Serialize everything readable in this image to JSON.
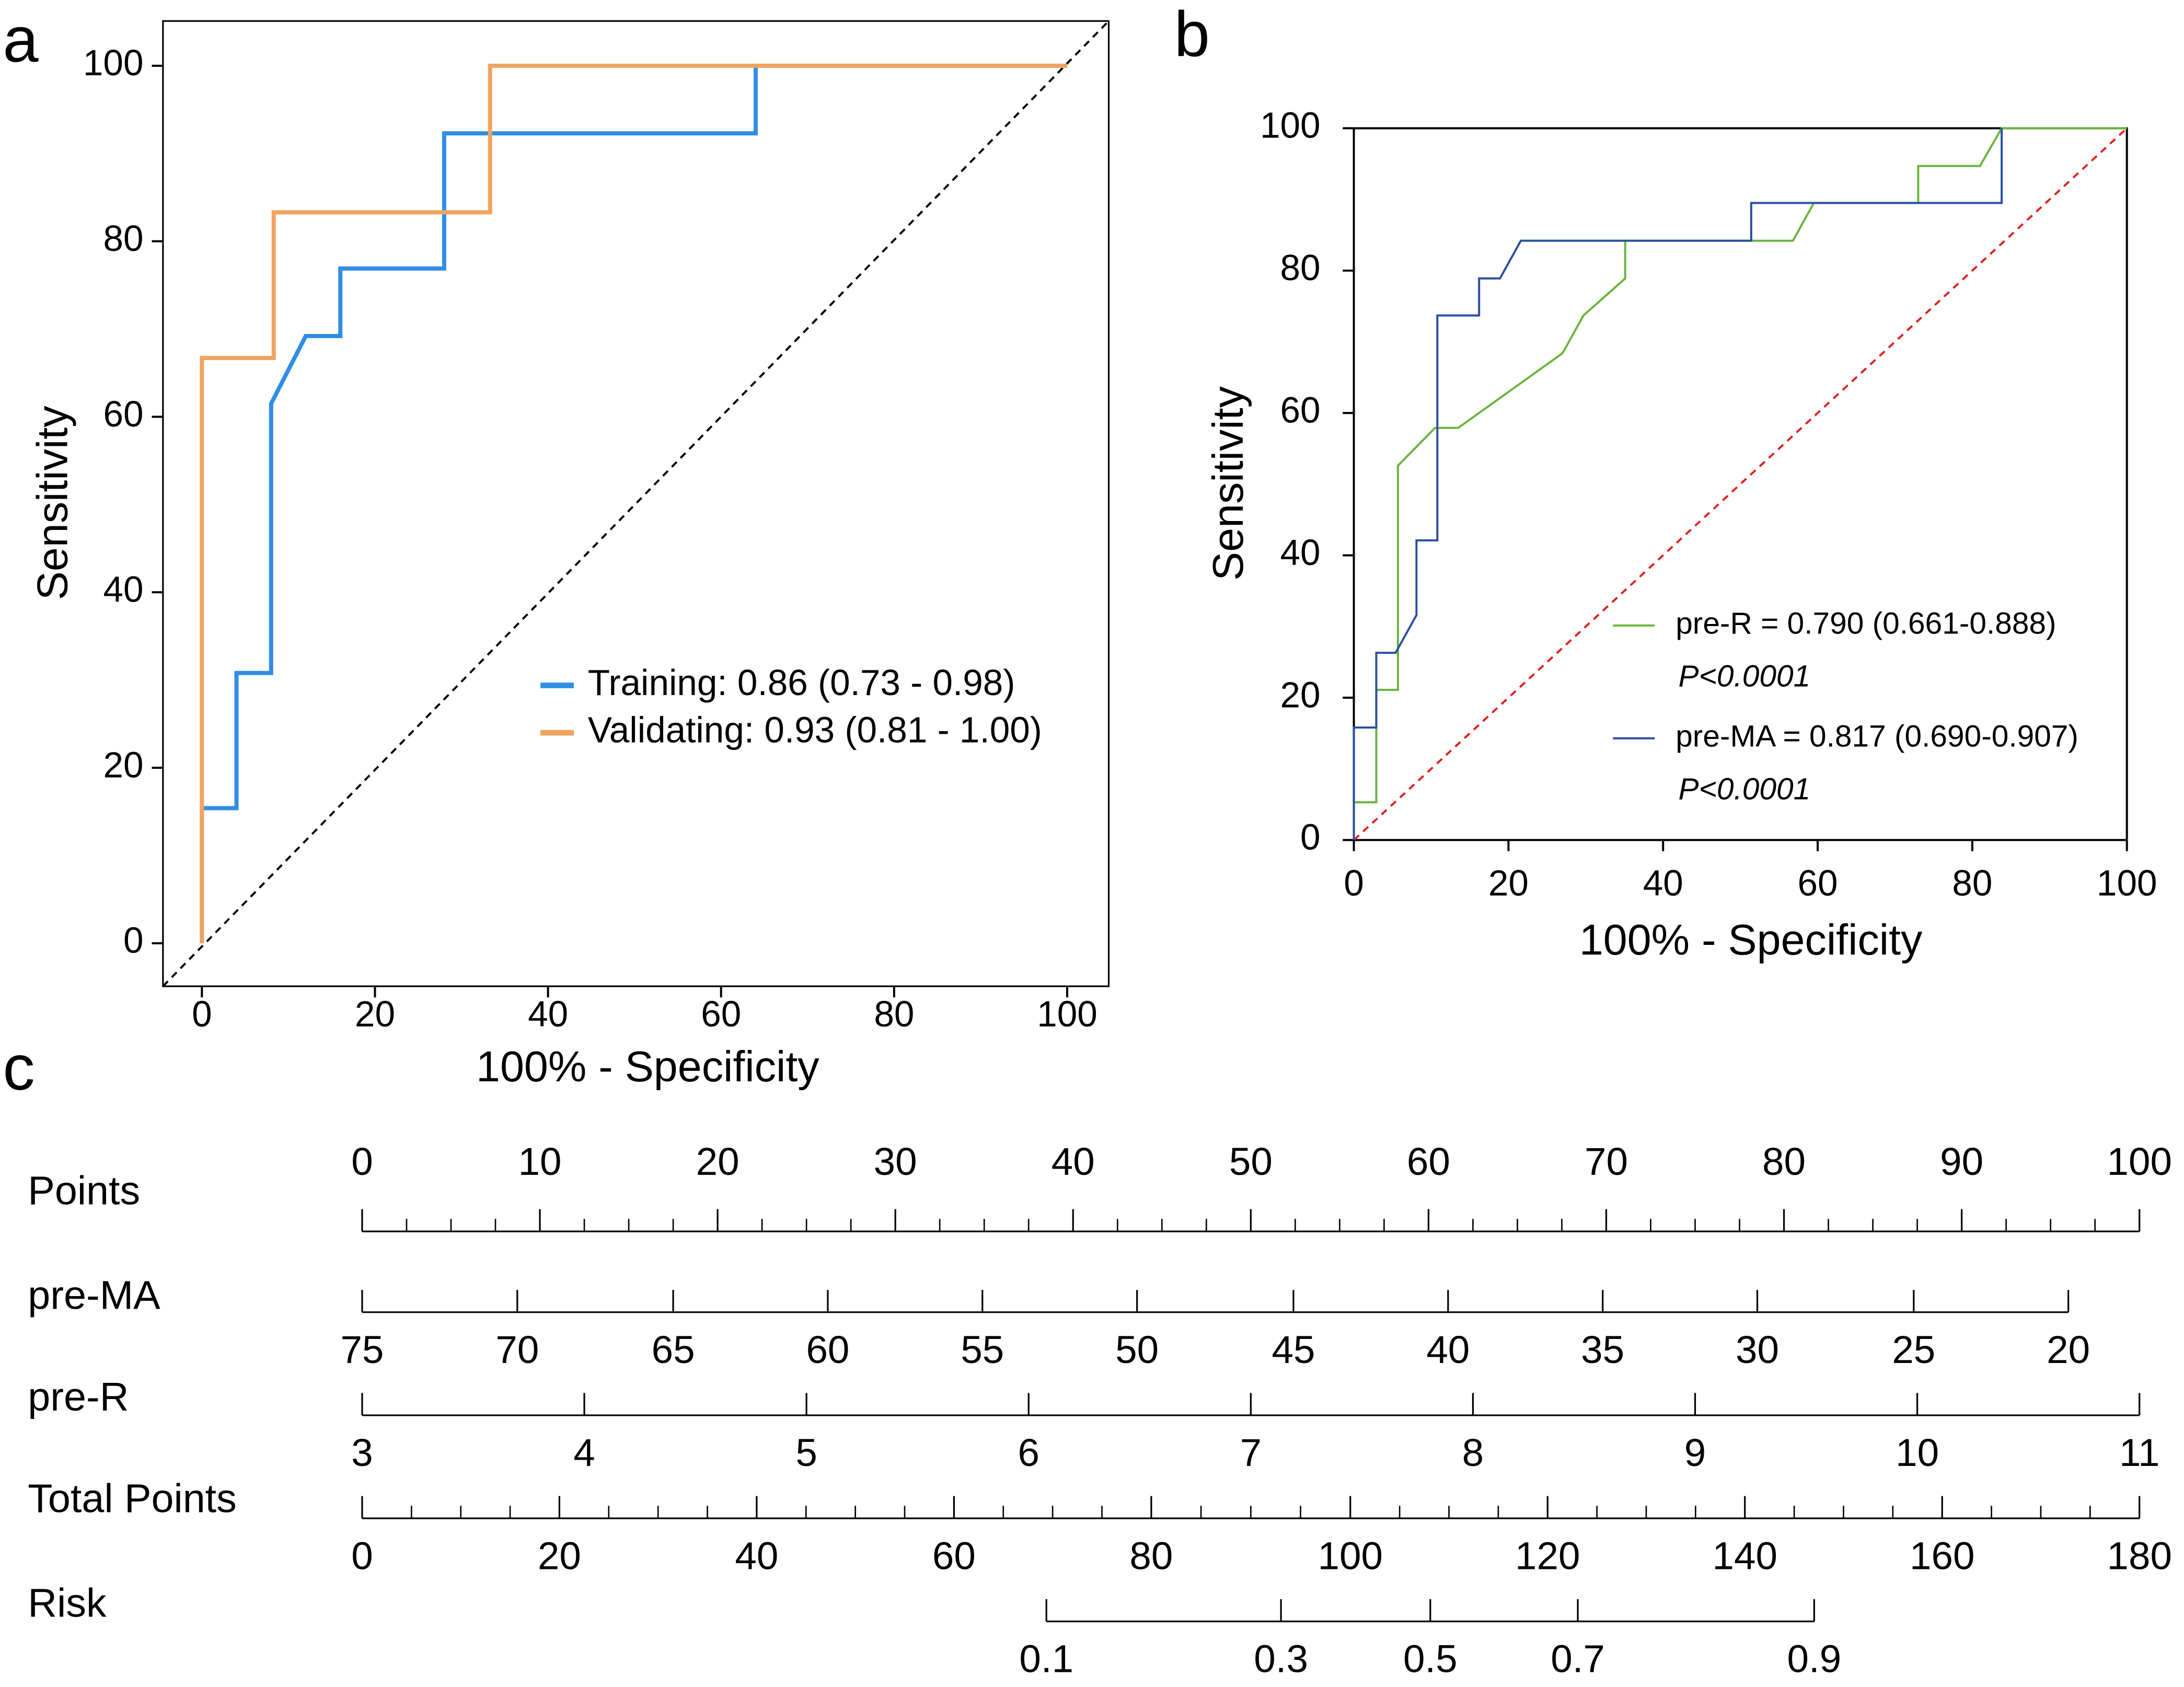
{
  "chart_data": [
    {
      "type": "roc",
      "panel": "a",
      "xlabel": "100% - Specificity",
      "ylabel": "Sensitivity",
      "xlim": [
        -4.5,
        104.8
      ],
      "ylim": [
        -4.9,
        105.1
      ],
      "xticks": [
        0,
        20,
        40,
        60,
        80,
        100
      ],
      "yticks": [
        0,
        20,
        40,
        60,
        80,
        100
      ],
      "reference_line_color": "#000000",
      "legend_position": "lower right",
      "series": [
        {
          "name": "Training: 0.86 (0.73 - 0.98)",
          "color": "#2f8ee5",
          "x": [
            0,
            0,
            4,
            4,
            8,
            8,
            12,
            16,
            16,
            28,
            28,
            64,
            64,
            100
          ],
          "values": [
            0,
            15.4,
            15.4,
            30.8,
            30.8,
            61.5,
            69.2,
            69.2,
            76.9,
            76.9,
            92.3,
            92.3,
            100,
            100
          ]
        },
        {
          "name": "Validating: 0.93 (0.81 - 1.00)",
          "color": "#f0a460",
          "x": [
            0,
            0,
            8.3,
            8.3,
            33.3,
            33.3,
            100
          ],
          "values": [
            0,
            66.7,
            66.7,
            83.3,
            83.3,
            100,
            100
          ]
        }
      ]
    },
    {
      "type": "roc",
      "panel": "b",
      "xlabel": "100% - Specificity",
      "ylabel": "Sensitivity",
      "xlim": [
        0,
        100
      ],
      "ylim": [
        0,
        100
      ],
      "xticks": [
        0,
        20,
        40,
        60,
        80,
        100
      ],
      "yticks": [
        0,
        20,
        40,
        60,
        80,
        100
      ],
      "reference_line_color": "#e02020",
      "legend_position": "lower right",
      "series": [
        {
          "name": "pre-R = 0.790 (0.661-0.888)",
          "p_label": "P<0.0001",
          "color": "#6ab43e",
          "x": [
            0,
            0,
            2.9,
            2.9,
            5.7,
            5.7,
            10.5,
            13.5,
            27,
            29.7,
            35.1,
            35.1,
            56.8,
            59.5,
            73,
            73,
            81,
            83.8,
            100
          ],
          "values": [
            0,
            5.3,
            5.3,
            21.1,
            21.1,
            52.6,
            57.9,
            57.9,
            68.4,
            73.7,
            78.9,
            84.2,
            84.2,
            89.5,
            89.5,
            94.7,
            94.7,
            100,
            100
          ]
        },
        {
          "name": "pre-MA = 0.817 (0.690-0.907)",
          "p_label": "P<0.0001",
          "color": "#2a4f9e",
          "x": [
            0,
            0,
            2.9,
            2.9,
            5.4,
            8.1,
            8.1,
            10.8,
            10.8,
            16.2,
            16.2,
            18.9,
            21.6,
            51.4,
            51.4,
            83.8,
            83.8
          ],
          "values": [
            0,
            15.8,
            15.8,
            26.3,
            26.3,
            31.6,
            42.1,
            42.1,
            73.7,
            73.7,
            78.9,
            78.9,
            84.2,
            84.2,
            89.5,
            89.5,
            100
          ]
        }
      ]
    },
    {
      "type": "nomogram",
      "panel": "c",
      "xlim": [
        0,
        100
      ],
      "rows": [
        {
          "name": "Points",
          "ticks": [
            0,
            10,
            20,
            30,
            40,
            50,
            60,
            70,
            80,
            90,
            100
          ],
          "points": [
            0,
            10,
            20,
            30,
            40,
            50,
            60,
            70,
            80,
            90,
            100
          ],
          "minor_divisions": 4
        },
        {
          "name": "pre-MA",
          "ticks": [
            75,
            70,
            65,
            60,
            55,
            50,
            45,
            40,
            35,
            30,
            25,
            20
          ],
          "points": [
            0,
            8.73,
            17.5,
            26.2,
            34.9,
            43.6,
            52.4,
            61.1,
            69.8,
            78.5,
            87.3,
            96
          ]
        },
        {
          "name": "pre-R",
          "ticks": [
            3,
            4,
            5,
            6,
            7,
            8,
            9,
            10,
            11
          ],
          "points": [
            0,
            12.5,
            25,
            37.5,
            50,
            62.5,
            75,
            87.5,
            100
          ]
        },
        {
          "name": "Total Points",
          "ticks": [
            0,
            20,
            40,
            60,
            80,
            100,
            120,
            140,
            160,
            180
          ],
          "points": [
            0,
            11.1,
            22.2,
            33.3,
            44.4,
            55.6,
            66.7,
            77.8,
            88.9,
            100
          ],
          "minor_divisions": 4
        },
        {
          "name": "Risk",
          "ticks": [
            0.1,
            0.3,
            0.5,
            0.7,
            0.9
          ],
          "points": [
            38.5,
            51.7,
            60.1,
            68.4,
            81.7
          ]
        }
      ]
    }
  ]
}
